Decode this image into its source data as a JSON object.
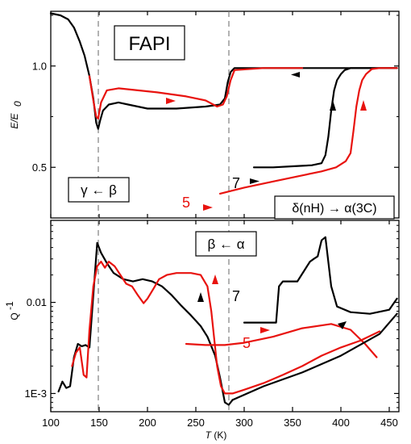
{
  "chart_data": [
    {
      "type": "line",
      "panel": "top",
      "ylabel_main": "E/E",
      "ylabel_sub": "0",
      "xlim": [
        100,
        460
      ],
      "ylim": [
        0.25,
        1.27
      ],
      "yticks": [
        {
          "value": 0.5,
          "label": "0.5"
        },
        {
          "value": 1.0,
          "label": "1.0"
        }
      ],
      "annotations": {
        "title_box": "FAPI",
        "gamma_beta_box": "γ ← β",
        "delta_alpha_box": "δ(nH) → α(3C)",
        "curve_label_7": "7",
        "curve_label_5": "5"
      },
      "transitions_x": [
        148,
        283
      ],
      "series": [
        {
          "color": "#000000",
          "x": [
            100,
            110,
            118,
            124,
            130,
            135,
            140,
            144,
            147,
            149,
            151,
            154,
            160,
            170,
            180,
            200,
            230,
            260,
            275,
            280,
            283,
            286,
            290,
            320,
            350,
            380,
            410,
            458
          ],
          "y": [
            1.26,
            1.25,
            1.23,
            1.19,
            1.12,
            1.05,
            0.95,
            0.84,
            0.72,
            0.69,
            0.73,
            0.78,
            0.81,
            0.82,
            0.81,
            0.79,
            0.79,
            0.8,
            0.81,
            0.84,
            0.92,
            0.97,
            0.99,
            0.99,
            0.99,
            0.99,
            0.99,
            0.99
          ]
        },
        {
          "color": "#e8130f",
          "x": [
            140,
            144,
            147,
            149,
            152,
            158,
            170,
            190,
            210,
            240,
            260,
            272,
            278,
            282,
            286,
            290,
            320,
            360
          ],
          "y": [
            0.95,
            0.83,
            0.75,
            0.74,
            0.82,
            0.88,
            0.89,
            0.88,
            0.87,
            0.85,
            0.83,
            0.8,
            0.81,
            0.85,
            0.93,
            0.98,
            0.99,
            0.99
          ]
        },
        {
          "color": "#000000",
          "x": [
            310,
            330,
            350,
            370,
            380,
            384,
            387,
            390,
            393,
            396,
            400,
            404,
            410,
            420,
            440,
            458
          ],
          "y": [
            0.5,
            0.5,
            0.505,
            0.51,
            0.52,
            0.56,
            0.65,
            0.78,
            0.88,
            0.93,
            0.96,
            0.98,
            0.99,
            0.99,
            0.99,
            0.99
          ]
        },
        {
          "color": "#e8130f",
          "x": [
            275,
            300,
            330,
            360,
            380,
            395,
            405,
            410,
            413,
            416,
            419,
            422,
            426,
            432,
            440,
            458
          ],
          "y": [
            0.37,
            0.4,
            0.43,
            0.46,
            0.48,
            0.5,
            0.53,
            0.57,
            0.68,
            0.8,
            0.88,
            0.93,
            0.96,
            0.985,
            0.99,
            0.99
          ]
        }
      ]
    },
    {
      "type": "line",
      "panel": "bottom",
      "ylabel_main": "Q",
      "ylabel_sup": "-1",
      "xlabel_main": "T",
      "xlabel_unit": " (K)",
      "xlim": [
        100,
        460
      ],
      "ylim_log10": [
        -3.2,
        -1.1
      ],
      "xticks": [
        {
          "value": 100,
          "label": "100"
        },
        {
          "value": 150,
          "label": "150"
        },
        {
          "value": 200,
          "label": "200"
        },
        {
          "value": 250,
          "label": "250"
        },
        {
          "value": 300,
          "label": "300"
        },
        {
          "value": 350,
          "label": "350"
        },
        {
          "value": 400,
          "label": "400"
        },
        {
          "value": 450,
          "label": "450"
        }
      ],
      "yticks": [
        {
          "value": 0.001,
          "label": "1E-3"
        },
        {
          "value": 0.01,
          "label": "0.01"
        }
      ],
      "annotations": {
        "beta_alpha_box": "β ← α",
        "curve_label_7": "7",
        "curve_label_5": "5"
      },
      "transitions_x": [
        148,
        283
      ],
      "series": [
        {
          "color": "#000000",
          "x": [
            108,
            112,
            116,
            120,
            124,
            128,
            132,
            136,
            140,
            144,
            148,
            152,
            158,
            165,
            175,
            185,
            195,
            205,
            215,
            225,
            235,
            245,
            255,
            262,
            270,
            275,
            280,
            284,
            288
          ],
          "y": [
            0.00105,
            0.00135,
            0.00115,
            0.0012,
            0.0025,
            0.0035,
            0.0033,
            0.0034,
            0.0032,
            0.012,
            0.045,
            0.035,
            0.027,
            0.021,
            0.018,
            0.017,
            0.018,
            0.017,
            0.015,
            0.012,
            0.0092,
            0.0072,
            0.0055,
            0.0042,
            0.0026,
            0.0015,
            0.0008,
            0.00075,
            0.00085
          ]
        },
        {
          "color": "#e8130f",
          "x": [
            122,
            126,
            130,
            134,
            137,
            140,
            144,
            148,
            152,
            156,
            160,
            166,
            172,
            178,
            184,
            190,
            196,
            200,
            206,
            212,
            220,
            230,
            245,
            255,
            262,
            266,
            269,
            272,
            276,
            280,
            284,
            288,
            300,
            320,
            340,
            360,
            380,
            400,
            420,
            440
          ],
          "y": [
            0.002,
            0.0028,
            0.0032,
            0.0016,
            0.0015,
            0.005,
            0.015,
            0.025,
            0.028,
            0.024,
            0.028,
            0.025,
            0.02,
            0.016,
            0.015,
            0.012,
            0.0098,
            0.011,
            0.014,
            0.018,
            0.02,
            0.021,
            0.021,
            0.02,
            0.015,
            0.008,
            0.004,
            0.002,
            0.0012,
            0.001,
            0.001,
            0.001,
            0.0011,
            0.0013,
            0.0016,
            0.002,
            0.0026,
            0.0032,
            0.0038,
            0.0048
          ]
        },
        {
          "color": "#000000",
          "x": [
            300,
            320,
            333,
            336,
            340,
            355,
            368,
            372,
            376,
            380,
            384,
            390,
            396,
            410,
            430,
            450,
            458
          ],
          "y": [
            0.006,
            0.006,
            0.006,
            0.015,
            0.017,
            0.017,
            0.028,
            0.03,
            0.032,
            0.048,
            0.052,
            0.015,
            0.009,
            0.0078,
            0.0075,
            0.0083,
            0.011
          ]
        },
        {
          "color": "#e8130f",
          "x": [
            240,
            260,
            280,
            300,
            330,
            360,
            390,
            410,
            425,
            437
          ],
          "y": [
            0.0035,
            0.0034,
            0.0034,
            0.0036,
            0.0042,
            0.0052,
            0.0058,
            0.005,
            0.0035,
            0.0025
          ]
        },
        {
          "color": "#000000",
          "x": [
            288,
            320,
            360,
            400,
            440,
            458
          ],
          "y": [
            0.00085,
            0.0012,
            0.0017,
            0.0026,
            0.0045,
            0.0075
          ]
        }
      ]
    }
  ]
}
